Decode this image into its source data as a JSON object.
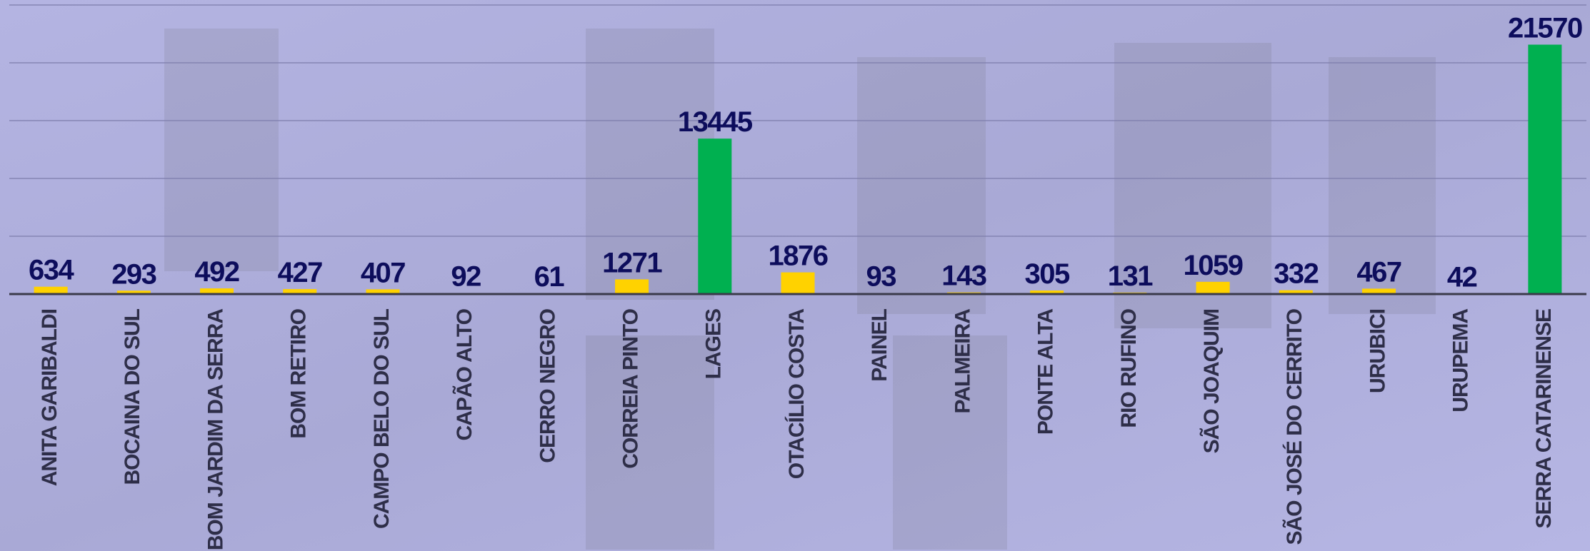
{
  "chart_data": {
    "type": "bar",
    "categories": [
      "ANITA GARIBALDI",
      "BOCAINA DO SUL",
      "BOM JARDIM DA SERRA",
      "BOM RETIRO",
      "CAMPO BELO DO SUL",
      "CAPÃO ALTO",
      "CERRO NEGRO",
      "CORREIA PINTO",
      "LAGES",
      "OTACÍLIO COSTA",
      "PAINEL",
      "PALMEIRA",
      "PONTE ALTA",
      "RIO RUFINO",
      "SÃO JOAQUIM",
      "SÃO JOSÉ DO CERRITO",
      "URUBICI",
      "URUPEMA",
      "SERRA CATARINENSE"
    ],
    "values": [
      634,
      293,
      492,
      427,
      407,
      92,
      61,
      1271,
      13445,
      1876,
      93,
      143,
      305,
      131,
      1059,
      332,
      467,
      42,
      21570
    ],
    "colors": [
      "#ffd200",
      "#ffd200",
      "#ffd200",
      "#ffd200",
      "#ffd200",
      "#ffd200",
      "#ffd200",
      "#ffd200",
      "#00b050",
      "#ffd200",
      "#ffd200",
      "#ffd200",
      "#ffd200",
      "#ffd200",
      "#ffd200",
      "#ffd200",
      "#ffd200",
      "#ffd200",
      "#00b050"
    ],
    "ylim": [
      0,
      25000
    ],
    "yticks": [
      0,
      5000,
      10000,
      15000,
      20000,
      25000
    ],
    "grid": true
  }
}
